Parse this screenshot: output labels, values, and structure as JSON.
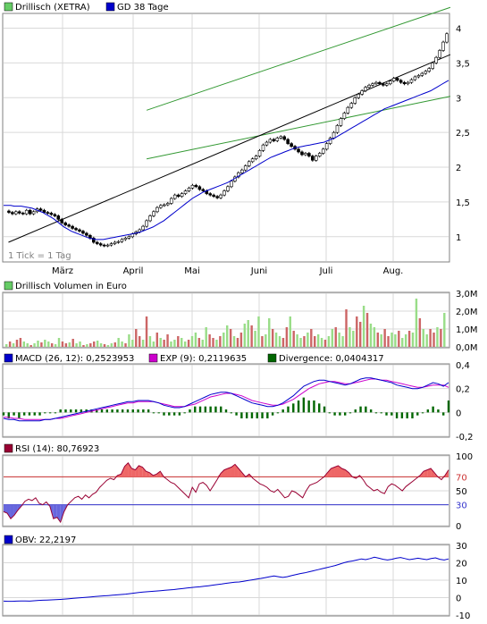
{
  "chart_data": [
    {
      "type": "candlestick",
      "legend": [
        {
          "label": "Drillisch (XETRA)",
          "color": "#66cc66"
        },
        {
          "label": "GD 38 Tage",
          "color": "#0000cc"
        }
      ],
      "x_labels": [
        "März",
        "April",
        "Mai",
        "Juni",
        "Juli",
        "Aug."
      ],
      "y_ticks": [
        "1",
        "1,5",
        "2",
        "2,5",
        "3",
        "3,5",
        "4"
      ],
      "ylim": [
        0.65,
        4.2
      ],
      "note": "1 Tick = 1 Tag",
      "price": [
        1.37,
        1.35,
        1.33,
        1.36,
        1.34,
        1.33,
        1.38,
        1.33,
        1.36,
        1.4,
        1.38,
        1.35,
        1.34,
        1.32,
        1.3,
        1.25,
        1.2,
        1.17,
        1.15,
        1.12,
        1.1,
        1.08,
        1.05,
        1.02,
        0.98,
        0.92,
        0.9,
        0.88,
        0.87,
        0.88,
        0.9,
        0.92,
        0.93,
        0.96,
        0.98,
        1.0,
        1.04,
        1.07,
        1.1,
        1.15,
        1.23,
        1.3,
        1.36,
        1.42,
        1.45,
        1.46,
        1.48,
        1.55,
        1.6,
        1.58,
        1.62,
        1.66,
        1.7,
        1.74,
        1.72,
        1.68,
        1.66,
        1.62,
        1.6,
        1.58,
        1.56,
        1.6,
        1.66,
        1.72,
        1.8,
        1.86,
        1.92,
        1.96,
        2.02,
        2.08,
        2.12,
        2.16,
        2.24,
        2.32,
        2.36,
        2.4,
        2.38,
        2.42,
        2.44,
        2.4,
        2.34,
        2.3,
        2.26,
        2.22,
        2.18,
        2.2,
        2.16,
        2.1,
        2.16,
        2.2,
        2.26,
        2.34,
        2.42,
        2.5,
        2.6,
        2.7,
        2.78,
        2.86,
        2.92,
        3.0,
        3.05,
        3.1,
        3.15,
        3.18,
        3.2,
        3.22,
        3.2,
        3.18,
        3.2,
        3.24,
        3.28,
        3.25,
        3.22,
        3.2,
        3.22,
        3.26,
        3.3,
        3.32,
        3.35,
        3.38,
        3.42,
        3.5,
        3.58,
        3.68,
        3.8,
        3.92
      ],
      "ma38": [
        1.45,
        1.45,
        1.45,
        1.44,
        1.44,
        1.44,
        1.43,
        1.42,
        1.41,
        1.39,
        1.37,
        1.35,
        1.32,
        1.29,
        1.26,
        1.22,
        1.18,
        1.14,
        1.11,
        1.08,
        1.06,
        1.04,
        1.02,
        1.0,
        0.98,
        0.97,
        0.96,
        0.96,
        0.96,
        0.97,
        0.98,
        0.99,
        1.0,
        1.01,
        1.02,
        1.03,
        1.04,
        1.05,
        1.06,
        1.08,
        1.1,
        1.12,
        1.14,
        1.17,
        1.2,
        1.23,
        1.27,
        1.31,
        1.35,
        1.39,
        1.43,
        1.47,
        1.51,
        1.55,
        1.58,
        1.61,
        1.64,
        1.66,
        1.68,
        1.7,
        1.72,
        1.74,
        1.76,
        1.78,
        1.81,
        1.84,
        1.87,
        1.9,
        1.93,
        1.96,
        1.99,
        2.02,
        2.05,
        2.08,
        2.11,
        2.14,
        2.16,
        2.18,
        2.2,
        2.22,
        2.24,
        2.26,
        2.28,
        2.29,
        2.3,
        2.31,
        2.32,
        2.33,
        2.34,
        2.35,
        2.36,
        2.38,
        2.4,
        2.42,
        2.45,
        2.48,
        2.51,
        2.54,
        2.57,
        2.6,
        2.63,
        2.66,
        2.69,
        2.72,
        2.75,
        2.78,
        2.81,
        2.84,
        2.86,
        2.88,
        2.9,
        2.92,
        2.94,
        2.96,
        2.98,
        3.0,
        3.02,
        3.04,
        3.06,
        3.08,
        3.1,
        3.13,
        3.16,
        3.19,
        3.22,
        3.25
      ],
      "trend_lower": [
        [
          0.88,
          0.92
        ],
        [
          126,
          3.62
        ]
      ],
      "trend_upper": [
        [
          40,
          2.82
        ],
        [
          126,
          4.3
        ]
      ],
      "trend_lower_outer": [
        [
          40,
          2.12
        ],
        [
          126,
          3.02
        ]
      ]
    },
    {
      "type": "bar",
      "title": "Drillisch Volumen in Euro",
      "legend_color": "#66cc66",
      "y_ticks": [
        "0,0M",
        "1,0M",
        "2,0M",
        "3,0M"
      ],
      "ylim": [
        0,
        3.0
      ],
      "values": [
        0.15,
        0.3,
        0.2,
        0.4,
        0.5,
        0.3,
        0.2,
        0.1,
        0.2,
        0.35,
        0.25,
        0.4,
        0.3,
        0.2,
        0.15,
        0.5,
        0.3,
        0.2,
        0.25,
        0.45,
        0.2,
        0.3,
        0.1,
        0.15,
        0.2,
        0.3,
        0.35,
        0.2,
        0.15,
        0.1,
        0.2,
        0.25,
        0.5,
        0.3,
        0.2,
        0.7,
        0.4,
        1.0,
        0.6,
        0.4,
        1.7,
        0.6,
        0.3,
        0.8,
        0.5,
        0.4,
        0.7,
        0.3,
        0.4,
        0.6,
        0.5,
        0.3,
        0.4,
        0.6,
        0.8,
        0.5,
        0.4,
        1.1,
        0.7,
        0.5,
        0.4,
        0.6,
        0.8,
        1.2,
        1.0,
        0.6,
        0.5,
        0.8,
        1.3,
        1.5,
        1.2,
        0.9,
        1.7,
        0.6,
        0.7,
        1.6,
        1.0,
        0.8,
        0.6,
        0.5,
        1.1,
        1.7,
        0.9,
        0.7,
        0.5,
        0.6,
        0.8,
        1.0,
        0.6,
        0.7,
        0.5,
        0.4,
        0.6,
        1.0,
        1.1,
        0.8,
        0.6,
        2.1,
        1.1,
        0.9,
        1.7,
        1.4,
        2.3,
        1.9,
        1.3,
        1.1,
        0.8,
        0.7,
        1.0,
        0.6,
        0.8,
        0.7,
        0.9,
        0.5,
        0.7,
        0.9,
        0.8,
        2.7,
        1.6,
        1.0,
        0.7,
        1.0,
        0.8,
        1.1,
        1.0,
        1.9
      ]
    },
    {
      "type": "line+bar",
      "legend": [
        {
          "label": "MACD (26, 12): 0,2523953",
          "color": "#0000cc"
        },
        {
          "label": "EXP (9): 0,2119635",
          "color": "#cc00cc"
        },
        {
          "label": "Divergence: 0,0404317",
          "color": "#006600"
        }
      ],
      "y_ticks": [
        "-0,2",
        "0",
        "0,2",
        "0,4"
      ],
      "ylim": [
        -0.2,
        0.4
      ],
      "macd": [
        -0.05,
        -0.06,
        -0.06,
        -0.07,
        -0.07,
        -0.07,
        -0.07,
        -0.07,
        -0.06,
        -0.06,
        -0.05,
        -0.04,
        -0.03,
        -0.02,
        -0.01,
        0.0,
        0.01,
        0.02,
        0.03,
        0.04,
        0.05,
        0.06,
        0.07,
        0.08,
        0.09,
        0.09,
        0.1,
        0.1,
        0.1,
        0.09,
        0.08,
        0.06,
        0.05,
        0.04,
        0.04,
        0.05,
        0.07,
        0.09,
        0.11,
        0.13,
        0.15,
        0.16,
        0.17,
        0.17,
        0.16,
        0.14,
        0.12,
        0.1,
        0.08,
        0.07,
        0.06,
        0.05,
        0.05,
        0.06,
        0.08,
        0.11,
        0.14,
        0.18,
        0.22,
        0.24,
        0.26,
        0.27,
        0.27,
        0.26,
        0.25,
        0.24,
        0.23,
        0.24,
        0.26,
        0.28,
        0.29,
        0.29,
        0.28,
        0.27,
        0.26,
        0.25,
        0.23,
        0.22,
        0.21,
        0.2,
        0.2,
        0.21,
        0.23,
        0.25,
        0.24,
        0.22,
        0.25
      ],
      "signal": [
        -0.04,
        -0.04,
        -0.05,
        -0.05,
        -0.06,
        -0.06,
        -0.06,
        -0.06,
        -0.06,
        -0.06,
        -0.05,
        -0.05,
        -0.04,
        -0.03,
        -0.02,
        -0.01,
        0.0,
        0.01,
        0.02,
        0.03,
        0.04,
        0.05,
        0.06,
        0.07,
        0.08,
        0.08,
        0.09,
        0.09,
        0.09,
        0.09,
        0.08,
        0.07,
        0.06,
        0.05,
        0.05,
        0.05,
        0.06,
        0.07,
        0.09,
        0.11,
        0.13,
        0.14,
        0.15,
        0.16,
        0.16,
        0.15,
        0.14,
        0.12,
        0.1,
        0.09,
        0.08,
        0.07,
        0.06,
        0.06,
        0.07,
        0.09,
        0.11,
        0.14,
        0.17,
        0.2,
        0.22,
        0.24,
        0.25,
        0.26,
        0.26,
        0.25,
        0.24,
        0.24,
        0.25,
        0.26,
        0.27,
        0.28,
        0.28,
        0.27,
        0.27,
        0.26,
        0.25,
        0.24,
        0.23,
        0.22,
        0.21,
        0.21,
        0.22,
        0.23,
        0.23,
        0.23,
        0.21
      ]
    },
    {
      "type": "line",
      "legend": [
        {
          "label": "RSI (14): 80,76923",
          "color": "#990033"
        }
      ],
      "y_ticks": [
        "0",
        "30",
        "50",
        "70",
        "100"
      ],
      "ylim": [
        0,
        100
      ],
      "ref_lines": [
        70,
        30
      ],
      "rsi": [
        20,
        18,
        10,
        15,
        22,
        28,
        35,
        38,
        36,
        40,
        32,
        30,
        34,
        28,
        10,
        12,
        5,
        20,
        30,
        35,
        40,
        42,
        38,
        44,
        40,
        45,
        48,
        55,
        60,
        65,
        68,
        66,
        72,
        74,
        85,
        90,
        82,
        80,
        86,
        84,
        78,
        76,
        72,
        74,
        78,
        70,
        66,
        62,
        60,
        55,
        50,
        45,
        40,
        55,
        48,
        60,
        62,
        58,
        50,
        58,
        66,
        75,
        80,
        82,
        84,
        88,
        82,
        76,
        70,
        74,
        68,
        64,
        60,
        58,
        55,
        50,
        48,
        52,
        46,
        40,
        42,
        50,
        48,
        44,
        40,
        50,
        58,
        60,
        62,
        66,
        70,
        76,
        82,
        84,
        86,
        82,
        80,
        76,
        70,
        68,
        72,
        66,
        58,
        54,
        50,
        52,
        48,
        46,
        56,
        60,
        58,
        54,
        50,
        56,
        60,
        64,
        68,
        72,
        78,
        80,
        82,
        76,
        70,
        66,
        72,
        80
      ]
    },
    {
      "type": "line",
      "legend": [
        {
          "label": "OBV: 22,2197",
          "color": "#0000cc"
        }
      ],
      "y_ticks": [
        "-10",
        "0",
        "10",
        "20",
        "30"
      ],
      "ylim": [
        -10,
        30
      ],
      "obv": [
        -2.0,
        -2.1,
        -2.1,
        -2.0,
        -1.9,
        -1.9,
        -2.0,
        -1.8,
        -1.6,
        -1.5,
        -1.4,
        -1.3,
        -1.2,
        -1.0,
        -0.8,
        -0.6,
        -0.4,
        -0.2,
        0.0,
        0.2,
        0.4,
        0.6,
        0.8,
        1.0,
        1.2,
        1.4,
        1.6,
        1.8,
        2.0,
        2.3,
        2.6,
        2.9,
        3.2,
        3.4,
        3.6,
        3.8,
        4.0,
        4.2,
        4.4,
        4.6,
        4.9,
        5.2,
        5.5,
        5.8,
        6.0,
        6.2,
        6.5,
        6.8,
        7.2,
        7.5,
        7.8,
        8.2,
        8.5,
        8.8,
        9.0,
        9.4,
        9.8,
        10.2,
        10.6,
        11.0,
        11.5,
        12.0,
        12.4,
        12.0,
        11.6,
        12.0,
        12.6,
        13.2,
        13.8,
        14.2,
        14.8,
        15.4,
        16.0,
        16.6,
        17.2,
        17.8,
        18.4,
        19.2,
        20.0,
        20.6,
        21.0,
        21.6,
        22.2,
        21.8,
        22.4,
        23.2,
        22.6,
        22.0,
        21.6,
        22.0,
        22.6,
        23.0,
        22.4,
        21.8,
        22.2,
        22.6,
        22.2,
        21.8,
        22.4,
        22.8,
        22.0,
        21.6,
        22.2
      ]
    }
  ]
}
